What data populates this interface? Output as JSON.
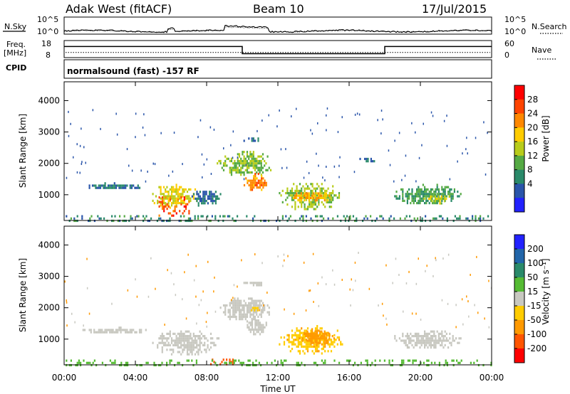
{
  "header": {
    "radar": "Adak West (fitACF)",
    "beam": "Beam 10",
    "date": "17/Jul/2015"
  },
  "status_panels": {
    "noise": {
      "left_label": "N.Sky",
      "right_label": "N.Search",
      "left_ticks": [
        "10^5",
        "10^0"
      ],
      "right_ticks": [
        "10^5",
        "10^0"
      ]
    },
    "freq": {
      "left_label_line1": "Freq.",
      "left_label_line2": "[MHz]",
      "right_label": "Nave",
      "left_ticks": [
        "18",
        "8"
      ],
      "right_ticks": [
        "60",
        "0"
      ],
      "left_range": [
        8,
        18
      ],
      "right_range": [
        0,
        60
      ],
      "freq_steps": [
        {
          "t0": 0.0,
          "t1": 10.0,
          "value": 14.5
        },
        {
          "t0": 10.0,
          "t1": 18.0,
          "value": 10.3
        },
        {
          "t0": 18.0,
          "t1": 24.0,
          "value": 14.5
        }
      ],
      "nave_value": 18
    },
    "cpid": {
      "label": "CPID",
      "text": "normalsound (fast) -157 RF"
    }
  },
  "axes": {
    "ylabel": "Slant Range [km]",
    "yticks": [
      "1000",
      "2000",
      "3000",
      "4000"
    ],
    "ytick_values": [
      1000,
      2000,
      3000,
      4000
    ],
    "yrange": [
      180,
      4600
    ],
    "xticks": [
      "00:00",
      "04:00",
      "08:00",
      "12:00",
      "16:00",
      "20:00",
      "00:00"
    ],
    "xtick_values": [
      0,
      4,
      8,
      12,
      16,
      20,
      24
    ],
    "xlabel": "Time UT"
  },
  "colorbars": {
    "power": {
      "label": "Power [dB]",
      "ticks": [
        "28",
        "24",
        "20",
        "16",
        "12",
        "8",
        "4"
      ],
      "colors": [
        "#ff0000",
        "#ff4400",
        "#ff8800",
        "#ffcc00",
        "#b8cc1a",
        "#55aa44",
        "#2a8a6a",
        "#2a55aa",
        "#2222ff"
      ]
    },
    "velocity": {
      "label": "Velocity [m s⁻¹]",
      "ticks": [
        "200",
        "100",
        "50",
        "15",
        "-15",
        "-50",
        "-100",
        "-200"
      ],
      "colors": [
        "#2222ff",
        "#2266aa",
        "#2a8a6a",
        "#55bb33",
        "#c8c8c0",
        "#ffcc00",
        "#ff9900",
        "#ff5500",
        "#ff0000"
      ]
    }
  },
  "chart_data": [
    {
      "type": "heatmap",
      "title": "",
      "xlabel": "Time UT",
      "ylabel": "Slant Range [km]",
      "colorbar_label": "Power [dB]",
      "xlim": [
        0,
        24
      ],
      "ylim": [
        180,
        4600
      ],
      "regions": [
        {
          "t0": 0.5,
          "t1": 5.0,
          "r0": 1200,
          "r1": 1400,
          "value": 6
        },
        {
          "t0": 4.5,
          "t1": 7.8,
          "r0": 600,
          "r1": 1350,
          "value": 18
        },
        {
          "t0": 5.3,
          "t1": 7.0,
          "r0": 350,
          "r1": 950,
          "value": 28
        },
        {
          "t0": 6.8,
          "t1": 9.0,
          "r0": 650,
          "r1": 1200,
          "value": 6
        },
        {
          "t0": 8.3,
          "t1": 12.0,
          "r0": 1600,
          "r1": 2400,
          "value": 14
        },
        {
          "t0": 9.9,
          "t1": 11.6,
          "r0": 1150,
          "r1": 1700,
          "value": 24
        },
        {
          "t0": 9.8,
          "t1": 11.3,
          "r0": 2700,
          "r1": 2900,
          "value": 6
        },
        {
          "t0": 11.7,
          "t1": 15.8,
          "r0": 550,
          "r1": 1450,
          "value": 14
        },
        {
          "t0": 12.3,
          "t1": 15.3,
          "r0": 800,
          "r1": 1150,
          "value": 22
        },
        {
          "t0": 16.4,
          "t1": 17.6,
          "r0": 2050,
          "r1": 2250,
          "value": 6
        },
        {
          "t0": 18.0,
          "t1": 22.7,
          "r0": 700,
          "r1": 1350,
          "value": 10
        },
        {
          "t0": 20.0,
          "t1": 21.8,
          "r0": 750,
          "r1": 1050,
          "value": 17
        },
        {
          "t0": 0.0,
          "t1": 24.0,
          "r0": 180,
          "r1": 350,
          "value": 8
        }
      ]
    },
    {
      "type": "heatmap",
      "title": "",
      "xlabel": "Time UT",
      "ylabel": "Slant Range [km]",
      "colorbar_label": "Velocity [m s⁻¹]",
      "xlim": [
        0,
        24
      ],
      "ylim": [
        180,
        4600
      ],
      "regions": [
        {
          "t0": 0.5,
          "t1": 5.0,
          "r0": 1200,
          "r1": 1400,
          "value": 0
        },
        {
          "t0": 4.5,
          "t1": 9.0,
          "r0": 500,
          "r1": 1350,
          "value": 0
        },
        {
          "t0": 8.3,
          "t1": 12.0,
          "r0": 1600,
          "r1": 2400,
          "value": 0
        },
        {
          "t0": 9.9,
          "t1": 11.6,
          "r0": 1150,
          "r1": 1700,
          "value": 0
        },
        {
          "t0": 9.8,
          "t1": 11.3,
          "r0": 2700,
          "r1": 2900,
          "value": 0
        },
        {
          "t0": 10.3,
          "t1": 11.0,
          "r0": 1900,
          "r1": 2100,
          "value": -40
        },
        {
          "t0": 11.7,
          "t1": 16.0,
          "r0": 550,
          "r1": 1450,
          "value": -40
        },
        {
          "t0": 13.0,
          "t1": 15.3,
          "r0": 800,
          "r1": 1350,
          "value": -80
        },
        {
          "t0": 18.0,
          "t1": 22.7,
          "r0": 700,
          "r1": 1350,
          "value": 0
        },
        {
          "t0": 8.2,
          "t1": 9.5,
          "r0": 200,
          "r1": 380,
          "value": -150
        },
        {
          "t0": 0.0,
          "t1": 24.0,
          "r0": 180,
          "r1": 350,
          "value": 30
        }
      ]
    }
  ]
}
